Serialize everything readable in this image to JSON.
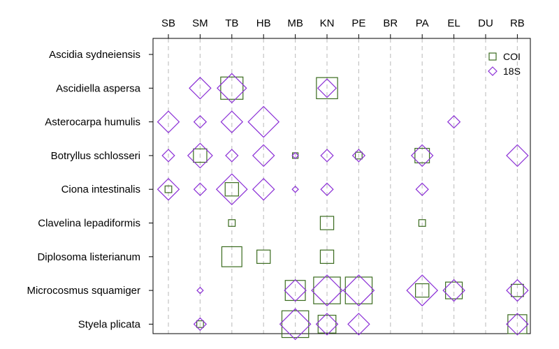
{
  "chart_data": {
    "type": "scatter",
    "title": "",
    "xlabel": "",
    "ylabel": "",
    "x_categories": [
      "SB",
      "SM",
      "TB",
      "HB",
      "MB",
      "KN",
      "PE",
      "BR",
      "PA",
      "EL",
      "DU",
      "RB"
    ],
    "y_categories": [
      "Ascidia sydneiensis",
      "Ascidiella aspersa",
      "Asterocarpa humulis",
      "Botryllus schlosseri",
      "Ciona intestinalis",
      "Clavelina lepadiformis",
      "Diplosoma listerianum",
      "Microcosmus squamiger",
      "Styela plicata"
    ],
    "grid": true,
    "legend": "top-right",
    "series": [
      {
        "name": "COI",
        "marker": "square",
        "color": "#3a6b1e",
        "points": [
          {
            "x": "TB",
            "y": "Ascidiella aspersa",
            "size": 1.0
          },
          {
            "x": "KN",
            "y": "Ascidiella aspersa",
            "size": 0.95
          },
          {
            "x": "SM",
            "y": "Botryllus schlosseri",
            "size": 0.6
          },
          {
            "x": "MB",
            "y": "Botryllus schlosseri",
            "size": 0.25
          },
          {
            "x": "PE",
            "y": "Botryllus schlosseri",
            "size": 0.3
          },
          {
            "x": "PA",
            "y": "Botryllus schlosseri",
            "size": 0.65
          },
          {
            "x": "SB",
            "y": "Ciona intestinalis",
            "size": 0.3
          },
          {
            "x": "TB",
            "y": "Ciona intestinalis",
            "size": 0.6
          },
          {
            "x": "TB",
            "y": "Clavelina lepadiformis",
            "size": 0.3
          },
          {
            "x": "KN",
            "y": "Clavelina lepadiformis",
            "size": 0.6
          },
          {
            "x": "PA",
            "y": "Clavelina lepadiformis",
            "size": 0.3
          },
          {
            "x": "TB",
            "y": "Diplosoma listerianum",
            "size": 0.9
          },
          {
            "x": "HB",
            "y": "Diplosoma listerianum",
            "size": 0.6
          },
          {
            "x": "KN",
            "y": "Diplosoma listerianum",
            "size": 0.6
          },
          {
            "x": "MB",
            "y": "Microcosmus squamiger",
            "size": 0.9
          },
          {
            "x": "KN",
            "y": "Microcosmus squamiger",
            "size": 1.2
          },
          {
            "x": "PE",
            "y": "Microcosmus squamiger",
            "size": 1.2
          },
          {
            "x": "PA",
            "y": "Microcosmus squamiger",
            "size": 0.6
          },
          {
            "x": "EL",
            "y": "Microcosmus squamiger",
            "size": 0.75
          },
          {
            "x": "RB",
            "y": "Microcosmus squamiger",
            "size": 0.55
          },
          {
            "x": "SM",
            "y": "Styela plicata",
            "size": 0.3
          },
          {
            "x": "MB",
            "y": "Styela plicata",
            "size": 1.2
          },
          {
            "x": "KN",
            "y": "Styela plicata",
            "size": 0.8
          },
          {
            "x": "RB",
            "y": "Styela plicata",
            "size": 0.85
          }
        ]
      },
      {
        "name": "18S",
        "marker": "diamond",
        "color": "#8b2fd6",
        "points": [
          {
            "x": "SM",
            "y": "Ascidiella aspersa",
            "size": 0.7
          },
          {
            "x": "TB",
            "y": "Ascidiella aspersa",
            "size": 0.95
          },
          {
            "x": "KN",
            "y": "Ascidiella aspersa",
            "size": 0.6
          },
          {
            "x": "SB",
            "y": "Asterocarpa humulis",
            "size": 0.7
          },
          {
            "x": "SM",
            "y": "Asterocarpa humulis",
            "size": 0.4
          },
          {
            "x": "TB",
            "y": "Asterocarpa humulis",
            "size": 0.7
          },
          {
            "x": "HB",
            "y": "Asterocarpa humulis",
            "size": 1.0
          },
          {
            "x": "EL",
            "y": "Asterocarpa humulis",
            "size": 0.4
          },
          {
            "x": "SB",
            "y": "Botryllus schlosseri",
            "size": 0.4
          },
          {
            "x": "SM",
            "y": "Botryllus schlosseri",
            "size": 0.8
          },
          {
            "x": "TB",
            "y": "Botryllus schlosseri",
            "size": 0.4
          },
          {
            "x": "HB",
            "y": "Botryllus schlosseri",
            "size": 0.7
          },
          {
            "x": "MB",
            "y": "Botryllus schlosseri",
            "size": 0.2
          },
          {
            "x": "KN",
            "y": "Botryllus schlosseri",
            "size": 0.4
          },
          {
            "x": "PE",
            "y": "Botryllus schlosseri",
            "size": 0.4
          },
          {
            "x": "PA",
            "y": "Botryllus schlosseri",
            "size": 0.7
          },
          {
            "x": "RB",
            "y": "Botryllus schlosseri",
            "size": 0.7
          },
          {
            "x": "SB",
            "y": "Ciona intestinalis",
            "size": 0.7
          },
          {
            "x": "SM",
            "y": "Ciona intestinalis",
            "size": 0.4
          },
          {
            "x": "TB",
            "y": "Ciona intestinalis",
            "size": 1.0
          },
          {
            "x": "HB",
            "y": "Ciona intestinalis",
            "size": 0.7
          },
          {
            "x": "MB",
            "y": "Ciona intestinalis",
            "size": 0.2
          },
          {
            "x": "KN",
            "y": "Ciona intestinalis",
            "size": 0.4
          },
          {
            "x": "PA",
            "y": "Ciona intestinalis",
            "size": 0.4
          },
          {
            "x": "SM",
            "y": "Microcosmus squamiger",
            "size": 0.2
          },
          {
            "x": "MB",
            "y": "Microcosmus squamiger",
            "size": 0.7
          },
          {
            "x": "KN",
            "y": "Microcosmus squamiger",
            "size": 1.0
          },
          {
            "x": "PE",
            "y": "Microcosmus squamiger",
            "size": 1.0
          },
          {
            "x": "PA",
            "y": "Microcosmus squamiger",
            "size": 1.0
          },
          {
            "x": "EL",
            "y": "Microcosmus squamiger",
            "size": 0.7
          },
          {
            "x": "RB",
            "y": "Microcosmus squamiger",
            "size": 0.7
          },
          {
            "x": "SM",
            "y": "Styela plicata",
            "size": 0.4
          },
          {
            "x": "MB",
            "y": "Styela plicata",
            "size": 1.0
          },
          {
            "x": "KN",
            "y": "Styela plicata",
            "size": 0.7
          },
          {
            "x": "PE",
            "y": "Styela plicata",
            "size": 0.7
          },
          {
            "x": "RB",
            "y": "Styela plicata",
            "size": 0.7
          }
        ]
      }
    ]
  }
}
